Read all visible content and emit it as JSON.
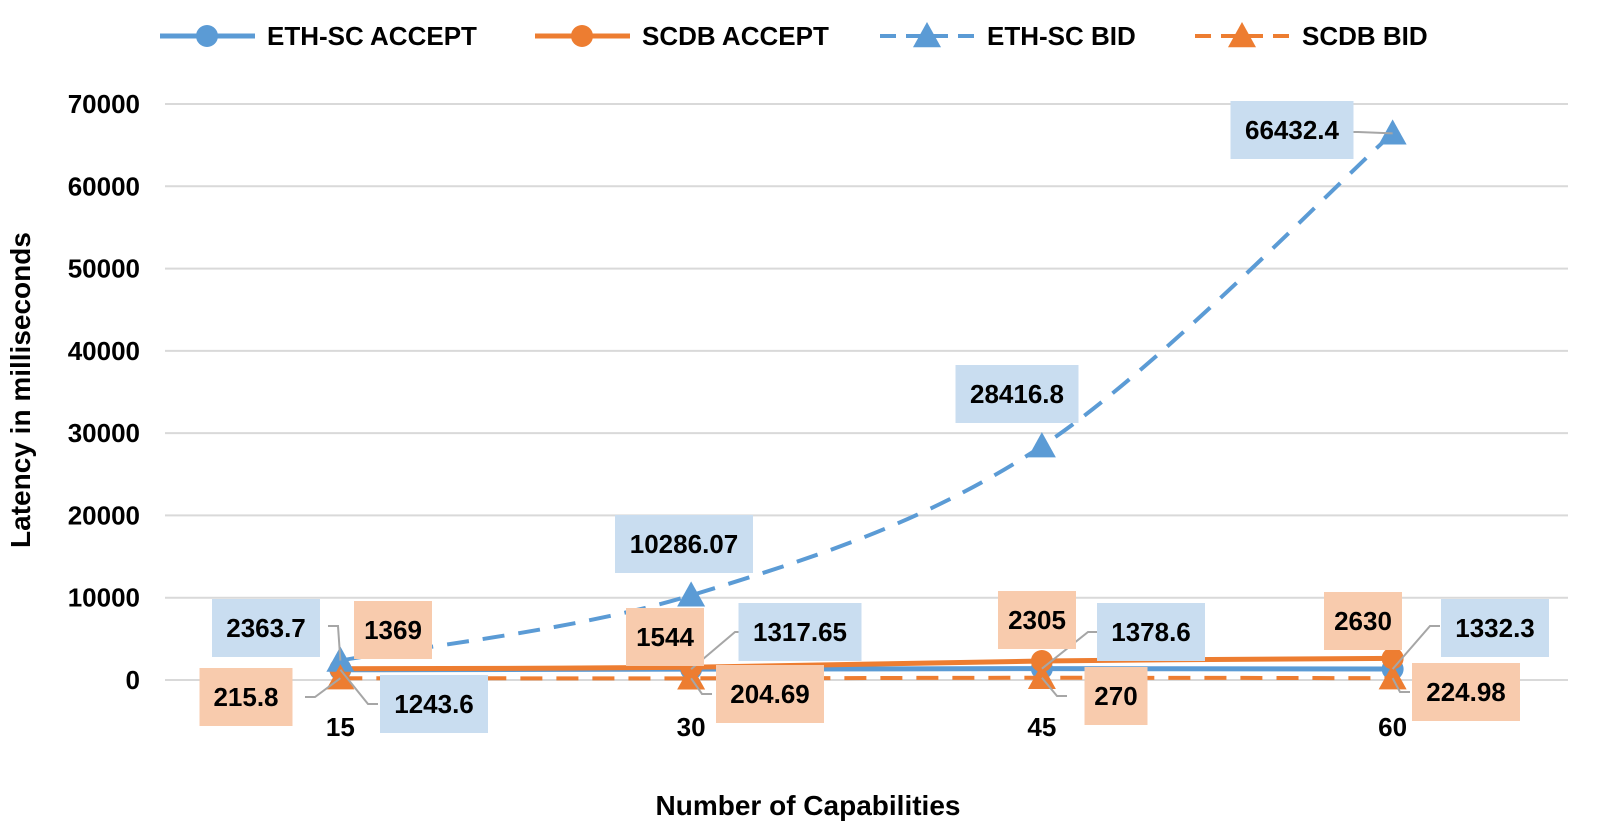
{
  "chart_data": {
    "type": "line",
    "categories": [
      "15",
      "30",
      "45",
      "60"
    ],
    "xlabel": "Number of Capabilities",
    "ylabel": "Latency  in milliseconds",
    "ylim": [
      0,
      70000
    ],
    "yticks": [
      0,
      10000,
      20000,
      30000,
      40000,
      50000,
      60000,
      70000
    ],
    "ytick_labels": [
      "0",
      "10000",
      "20000",
      "30000",
      "40000",
      "50000",
      "60000",
      "70000"
    ],
    "grid": true,
    "legend_position": "top",
    "series": [
      {
        "name": "ETH-SC ACCEPT",
        "color": "#5b9bd5",
        "marker": "circle",
        "dash": "solid",
        "values": [
          1243.6,
          1317.65,
          1378.6,
          1332.3
        ],
        "labels": [
          "1243.6",
          "1317.65",
          "1378.6",
          "1332.3"
        ],
        "label_bg": "#c9ddf0"
      },
      {
        "name": "SCDB ACCEPT",
        "color": "#ed7d31",
        "marker": "circle",
        "dash": "solid",
        "values": [
          1369,
          1544,
          2305,
          2630
        ],
        "labels": [
          "1369",
          "1544",
          "2305",
          "2630"
        ],
        "label_bg": "#f8cbad"
      },
      {
        "name": "ETH-SC BID",
        "color": "#5b9bd5",
        "marker": "triangle",
        "dash": "dashed",
        "values": [
          2363.7,
          10286.07,
          28416.8,
          66432.4
        ],
        "labels": [
          "2363.7",
          "10286.07",
          "28416.8",
          "66432.4"
        ],
        "label_bg": "#c9ddf0"
      },
      {
        "name": "SCDB BID",
        "color": "#ed7d31",
        "marker": "triangle",
        "dash": "dashed",
        "values": [
          215.8,
          204.69,
          270,
          224.98
        ],
        "labels": [
          "215.8",
          "204.69",
          "270",
          "224.98"
        ],
        "label_bg": "#f8cbad"
      }
    ]
  }
}
